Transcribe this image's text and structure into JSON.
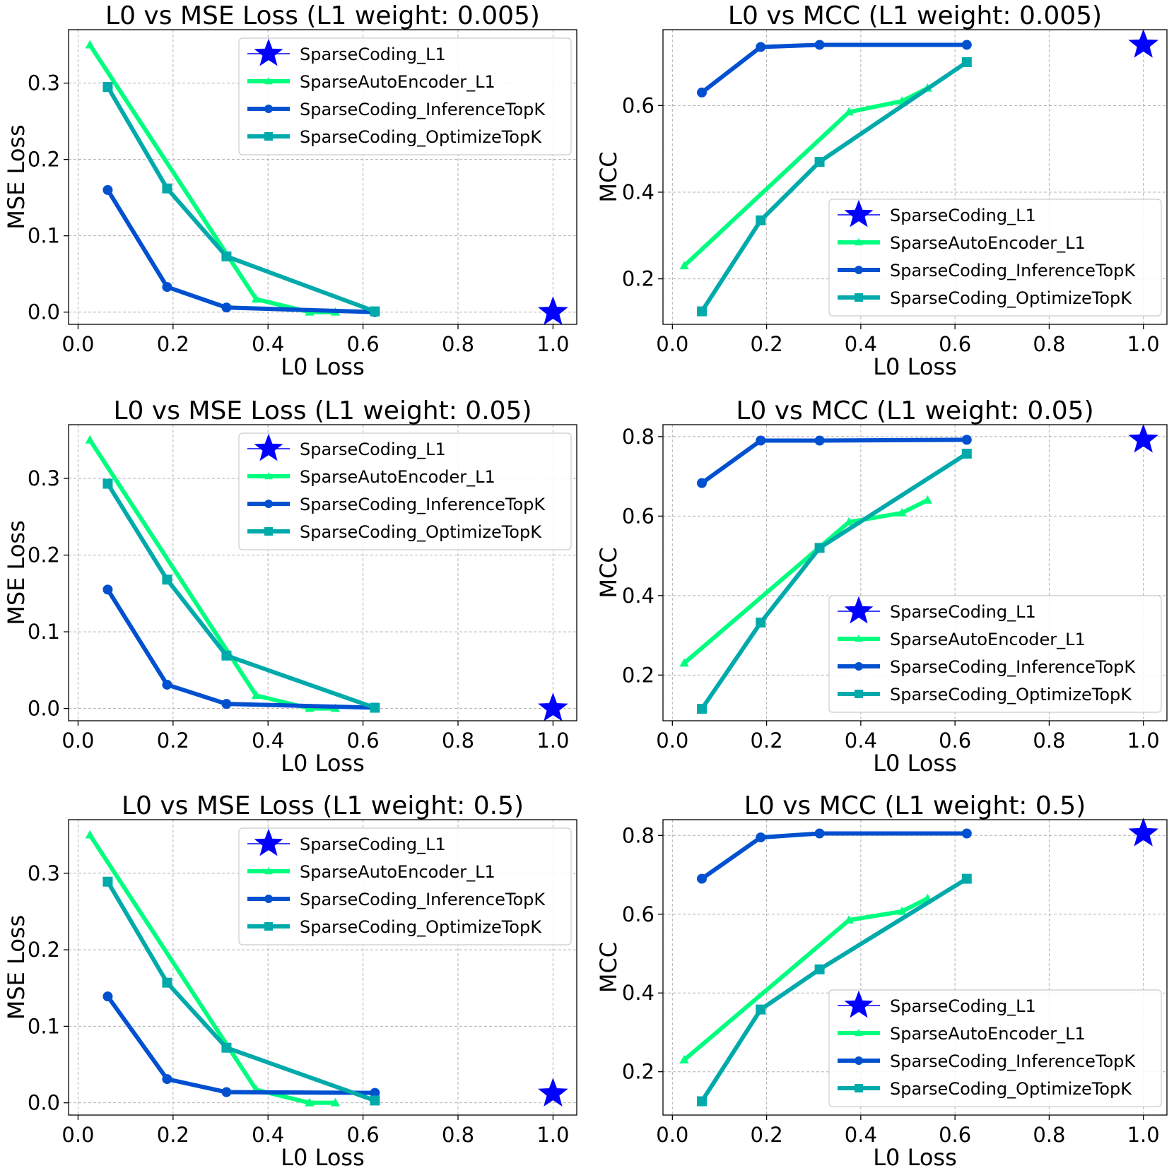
{
  "colors": {
    "sc_l1": "#0000ff",
    "sae_l1": "#00ff7f",
    "sc_inference": "#0050d0",
    "sc_optimize": "#00aaaa"
  },
  "chart_data": [
    {
      "type": "line",
      "title": "L0 vs MSE Loss (L1 weight: 0.005)",
      "xlabel": "L0 Loss",
      "ylabel": "MSE Loss",
      "xlim": [
        -0.02,
        1.05
      ],
      "ylim": [
        -0.016,
        0.37
      ],
      "xticks": [
        "0.0",
        "0.2",
        "0.4",
        "0.6",
        "0.8",
        "1.0"
      ],
      "yticks": [
        "0.0",
        "0.1",
        "0.2",
        "0.3"
      ],
      "legend_position": "upper-right",
      "series": [
        {
          "name": "SparseCoding_L1",
          "marker": "star",
          "x": [
            1.0
          ],
          "y": [
            0.0
          ]
        },
        {
          "name": "SparseAutoEncoder_L1",
          "marker": "triangle",
          "x": [
            0.025,
            0.375,
            0.4875,
            0.5417
          ],
          "y": [
            0.35,
            0.017,
            0.0,
            0.0
          ]
        },
        {
          "name": "SparseCoding_InferenceTopK",
          "marker": "circle",
          "x": [
            0.0625,
            0.1875,
            0.3125,
            0.625
          ],
          "y": [
            0.16,
            0.033,
            0.006,
            0.0
          ]
        },
        {
          "name": "SparseCoding_OptimizeTopK",
          "marker": "square",
          "x": [
            0.0625,
            0.1875,
            0.3125,
            0.625
          ],
          "y": [
            0.295,
            0.162,
            0.073,
            0.001
          ]
        }
      ]
    },
    {
      "type": "line",
      "title": "L0 vs MCC (L1 weight: 0.005)",
      "xlabel": "L0 Loss",
      "ylabel": "MCC",
      "xlim": [
        -0.02,
        1.05
      ],
      "ylim": [
        0.095,
        0.775
      ],
      "xticks": [
        "0.0",
        "0.2",
        "0.4",
        "0.6",
        "0.8",
        "1.0"
      ],
      "yticks": [
        "0.2",
        "0.4",
        "0.6"
      ],
      "legend_position": "lower-right",
      "series": [
        {
          "name": "SparseCoding_L1",
          "marker": "star",
          "x": [
            1.0
          ],
          "y": [
            0.74
          ]
        },
        {
          "name": "SparseAutoEncoder_L1",
          "marker": "triangle",
          "x": [
            0.025,
            0.375,
            0.4875,
            0.5417
          ],
          "y": [
            0.23,
            0.585,
            0.61,
            0.64
          ]
        },
        {
          "name": "SparseCoding_InferenceTopK",
          "marker": "circle",
          "x": [
            0.0625,
            0.1875,
            0.3125,
            0.625
          ],
          "y": [
            0.63,
            0.735,
            0.74,
            0.74
          ]
        },
        {
          "name": "SparseCoding_OptimizeTopK",
          "marker": "square",
          "x": [
            0.0625,
            0.1875,
            0.3125,
            0.625
          ],
          "y": [
            0.125,
            0.335,
            0.47,
            0.7
          ]
        }
      ]
    },
    {
      "type": "line",
      "title": "L0 vs MSE Loss (L1 weight: 0.05)",
      "xlabel": "L0 Loss",
      "ylabel": "MSE Loss",
      "xlim": [
        -0.02,
        1.05
      ],
      "ylim": [
        -0.016,
        0.37
      ],
      "xticks": [
        "0.0",
        "0.2",
        "0.4",
        "0.6",
        "0.8",
        "1.0"
      ],
      "yticks": [
        "0.0",
        "0.1",
        "0.2",
        "0.3"
      ],
      "legend_position": "upper-right",
      "series": [
        {
          "name": "SparseCoding_L1",
          "marker": "star",
          "x": [
            1.0
          ],
          "y": [
            0.0
          ]
        },
        {
          "name": "SparseAutoEncoder_L1",
          "marker": "triangle",
          "x": [
            0.025,
            0.375,
            0.4875,
            0.5417
          ],
          "y": [
            0.35,
            0.017,
            0.0,
            0.0
          ]
        },
        {
          "name": "SparseCoding_InferenceTopK",
          "marker": "circle",
          "x": [
            0.0625,
            0.1875,
            0.3125,
            0.625
          ],
          "y": [
            0.155,
            0.031,
            0.006,
            0.001
          ]
        },
        {
          "name": "SparseCoding_OptimizeTopK",
          "marker": "square",
          "x": [
            0.0625,
            0.1875,
            0.3125,
            0.625
          ],
          "y": [
            0.293,
            0.168,
            0.069,
            0.001
          ]
        }
      ]
    },
    {
      "type": "line",
      "title": "L0 vs MCC (L1 weight: 0.05)",
      "xlabel": "L0 Loss",
      "ylabel": "MCC",
      "xlim": [
        -0.02,
        1.05
      ],
      "ylim": [
        0.085,
        0.83
      ],
      "xticks": [
        "0.0",
        "0.2",
        "0.4",
        "0.6",
        "0.8",
        "1.0"
      ],
      "yticks": [
        "0.2",
        "0.4",
        "0.6",
        "0.8"
      ],
      "legend_position": "lower-right",
      "series": [
        {
          "name": "SparseCoding_L1",
          "marker": "star",
          "x": [
            1.0
          ],
          "y": [
            0.792
          ]
        },
        {
          "name": "SparseAutoEncoder_L1",
          "marker": "triangle",
          "x": [
            0.025,
            0.375,
            0.4875,
            0.5417
          ],
          "y": [
            0.23,
            0.585,
            0.608,
            0.64
          ]
        },
        {
          "name": "SparseCoding_InferenceTopK",
          "marker": "circle",
          "x": [
            0.0625,
            0.1875,
            0.3125,
            0.625
          ],
          "y": [
            0.683,
            0.79,
            0.79,
            0.792
          ]
        },
        {
          "name": "SparseCoding_OptimizeTopK",
          "marker": "square",
          "x": [
            0.0625,
            0.1875,
            0.3125,
            0.625
          ],
          "y": [
            0.115,
            0.332,
            0.52,
            0.757
          ]
        }
      ]
    },
    {
      "type": "line",
      "title": "L0 vs MSE Loss (L1 weight: 0.5)",
      "xlabel": "L0 Loss",
      "ylabel": "MSE Loss",
      "xlim": [
        -0.02,
        1.05
      ],
      "ylim": [
        -0.016,
        0.37
      ],
      "xticks": [
        "0.0",
        "0.2",
        "0.4",
        "0.6",
        "0.8",
        "1.0"
      ],
      "yticks": [
        "0.0",
        "0.1",
        "0.2",
        "0.3"
      ],
      "legend_position": "upper-right",
      "series": [
        {
          "name": "SparseCoding_L1",
          "marker": "star",
          "x": [
            1.0
          ],
          "y": [
            0.012
          ]
        },
        {
          "name": "SparseAutoEncoder_L1",
          "marker": "triangle",
          "x": [
            0.025,
            0.375,
            0.4875,
            0.5417
          ],
          "y": [
            0.35,
            0.017,
            0.0,
            0.0
          ]
        },
        {
          "name": "SparseCoding_InferenceTopK",
          "marker": "circle",
          "x": [
            0.0625,
            0.1875,
            0.3125,
            0.625
          ],
          "y": [
            0.139,
            0.031,
            0.014,
            0.013
          ]
        },
        {
          "name": "SparseCoding_OptimizeTopK",
          "marker": "square",
          "x": [
            0.0625,
            0.1875,
            0.3125,
            0.625
          ],
          "y": [
            0.289,
            0.157,
            0.072,
            0.003
          ]
        }
      ]
    },
    {
      "type": "line",
      "title": "L0 vs MCC (L1 weight: 0.5)",
      "xlabel": "L0 Loss",
      "ylabel": "MCC",
      "xlim": [
        -0.02,
        1.05
      ],
      "ylim": [
        0.09,
        0.84
      ],
      "xticks": [
        "0.0",
        "0.2",
        "0.4",
        "0.6",
        "0.8",
        "1.0"
      ],
      "yticks": [
        "0.2",
        "0.4",
        "0.6",
        "0.8"
      ],
      "legend_position": "lower-right",
      "series": [
        {
          "name": "SparseCoding_L1",
          "marker": "star",
          "x": [
            1.0
          ],
          "y": [
            0.805
          ]
        },
        {
          "name": "SparseAutoEncoder_L1",
          "marker": "triangle",
          "x": [
            0.025,
            0.375,
            0.4875,
            0.5417
          ],
          "y": [
            0.23,
            0.585,
            0.607,
            0.64
          ]
        },
        {
          "name": "SparseCoding_InferenceTopK",
          "marker": "circle",
          "x": [
            0.0625,
            0.1875,
            0.3125,
            0.625
          ],
          "y": [
            0.69,
            0.795,
            0.805,
            0.805
          ]
        },
        {
          "name": "SparseCoding_OptimizeTopK",
          "marker": "square",
          "x": [
            0.0625,
            0.1875,
            0.3125,
            0.625
          ],
          "y": [
            0.125,
            0.358,
            0.46,
            0.69
          ]
        }
      ]
    }
  ]
}
